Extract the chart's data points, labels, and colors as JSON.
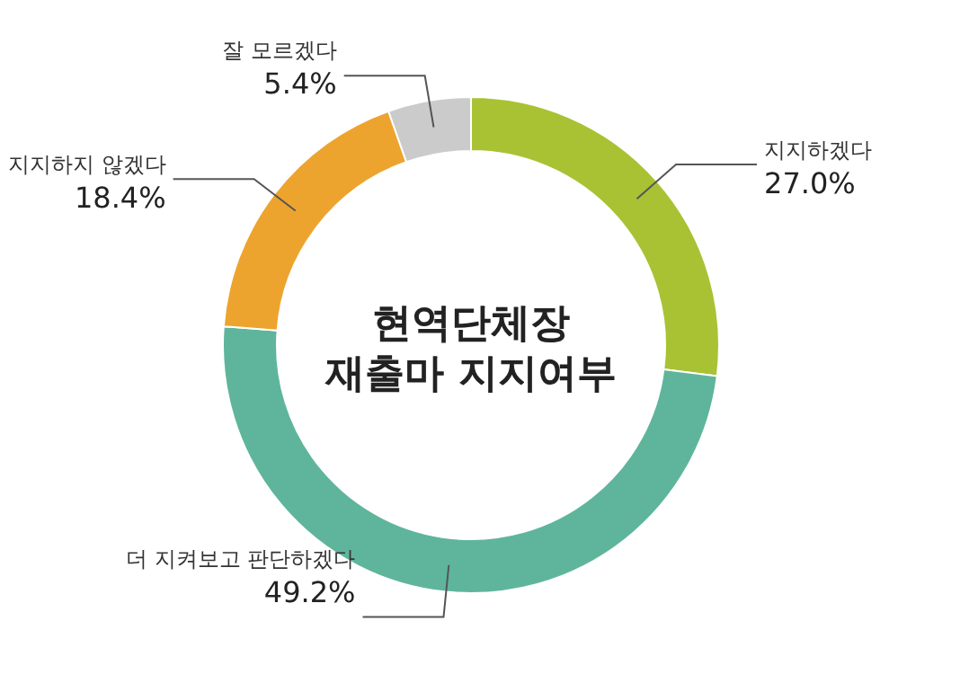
{
  "chart_data": {
    "type": "donut",
    "title": "현역단체장 재출마 지지여부",
    "categories": [
      "지지하겠다",
      "더 지켜보고 판단하겠다",
      "지지하지 않겠다",
      "잘 모르겠다"
    ],
    "values": [
      27.0,
      49.2,
      18.4,
      5.4
    ],
    "value_labels": [
      "27.0%",
      "49.2%",
      "18.4%",
      "5.4%"
    ],
    "colors": [
      "#a8c234",
      "#5fb59b",
      "#eda42e",
      "#cbcbcb"
    ]
  }
}
